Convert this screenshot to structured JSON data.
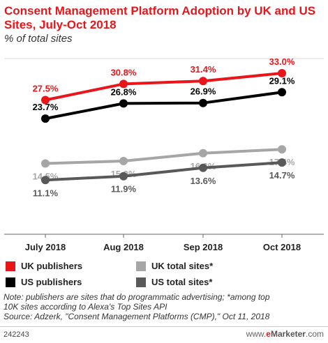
{
  "header": {
    "title": "Consent Management Platform Adoption by UK and US Sites, July-Oct 2018",
    "subtitle": "% of total sites"
  },
  "chart_data": {
    "type": "line",
    "title": "Consent Management Platform Adoption by UK and US Sites, July-Oct 2018",
    "subtitle": "% of total sites",
    "xlabel": "",
    "ylabel": "",
    "categories": [
      "July 2018",
      "Aug 2018",
      "Sep 2018",
      "Oct 2018"
    ],
    "ylim": [
      0,
      36
    ],
    "grid": false,
    "legend_position": "bottom",
    "series": [
      {
        "name": "UK publishers",
        "color": "#e8161b",
        "values": [
          27.5,
          30.8,
          31.4,
          33.0
        ],
        "labels": [
          "27.5%",
          "30.8%",
          "31.4%",
          "33.0%"
        ],
        "label_color": "#e8161b",
        "label_side": "above"
      },
      {
        "name": "US publishers",
        "color": "#000000",
        "values": [
          23.7,
          26.8,
          26.9,
          29.1
        ],
        "labels": [
          "23.7%",
          "26.8%",
          "26.9%",
          "29.1%"
        ],
        "label_color": "#000000",
        "label_side": "above"
      },
      {
        "name": "UK total sites*",
        "color": "#a6a6a6",
        "values": [
          14.5,
          15.0,
          16.6,
          17.4
        ],
        "labels": [
          "14.5%",
          "15.0%",
          "16.6%",
          "17.4%"
        ],
        "label_color": "#a6a6a6",
        "label_side": "below"
      },
      {
        "name": "US total sites*",
        "color": "#595959",
        "values": [
          11.1,
          11.9,
          13.6,
          14.7
        ],
        "labels": [
          "11.1%",
          "11.9%",
          "13.6%",
          "14.7%"
        ],
        "label_color": "#595959",
        "label_side": "below"
      }
    ]
  },
  "notes": {
    "note_line1": "Note: publishers are sites that do programmatic advertising; *among top",
    "note_line2": "10K sites according to Alexa's Top Sites API",
    "source": "Source: Adzerk, \"Consent Management Platforms (CMP),\" Oct 11, 2018"
  },
  "footer": {
    "chart_id": "242243",
    "brand_prefix": "www.",
    "brand_e": "e",
    "brand_marketer": "Marketer",
    "brand_suffix": ".com"
  }
}
